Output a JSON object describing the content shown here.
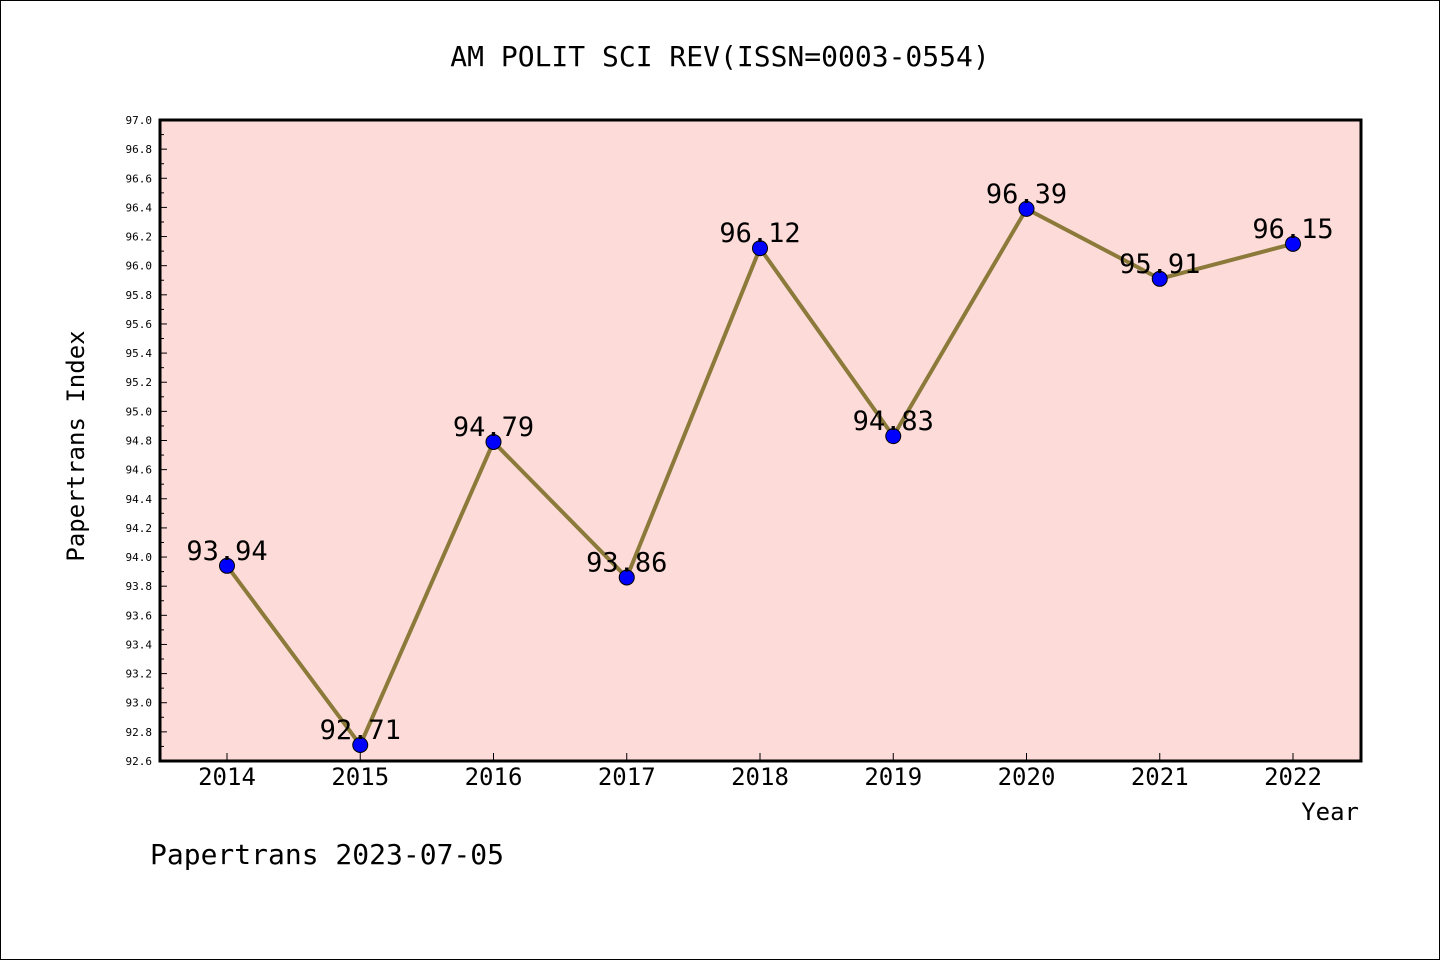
{
  "chart_data": {
    "type": "line",
    "title": "AM POLIT SCI REV(ISSN=0003-0554)",
    "xlabel": "Year",
    "ylabel": "Papertrans Index",
    "categories": [
      "2014",
      "2015",
      "2016",
      "2017",
      "2018",
      "2019",
      "2020",
      "2021",
      "2022"
    ],
    "values": [
      93.94,
      92.71,
      94.79,
      93.86,
      96.12,
      94.83,
      96.39,
      95.91,
      96.15
    ],
    "data_labels": [
      "93.94",
      "92.71",
      "94.79",
      "93.86",
      "96.12",
      "94.83",
      "96.39",
      "95.91",
      "96.15"
    ],
    "ylim": [
      92.6,
      97.0
    ],
    "yticks": [
      "92.6",
      "92.8",
      "93.0",
      "93.2",
      "93.4",
      "93.6",
      "93.8",
      "94.0",
      "94.2",
      "94.4",
      "94.6",
      "94.8",
      "95.0",
      "95.2",
      "95.4",
      "95.6",
      "95.8",
      "96.0",
      "96.2",
      "96.4",
      "96.6",
      "96.8",
      "97.0"
    ],
    "grid": false,
    "legend": "none",
    "colors": {
      "plot_background": "#fddbd9",
      "line": "#8b7a3a",
      "marker": "#0000ff"
    }
  },
  "footer": "Papertrans 2023-07-05"
}
